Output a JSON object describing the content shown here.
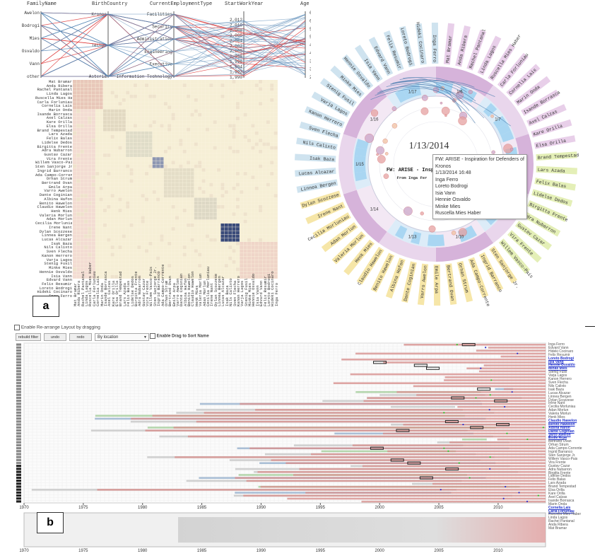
{
  "panel_labels": {
    "a": "a",
    "b": "b"
  },
  "parallel": {
    "headers": [
      "FamilyName",
      "BirthCountry",
      "CurrentEmploymentType",
      "StartWorkYear",
      "Age"
    ],
    "family_names": [
      "Awelon",
      "Bodrogi",
      "Mies",
      "Osvaldo",
      "Vann",
      "other"
    ],
    "countries": [
      "Kronos",
      "Tethys",
      "Asteria"
    ],
    "employment": [
      "Facilities",
      "Security",
      "Administration",
      "Engineering",
      "Executive",
      "Information Technology"
    ],
    "years": [
      "2,012",
      "2,010",
      "2,008",
      "2,006",
      "2,004",
      "2,002",
      "2,000",
      "1,998",
      "1,996",
      "1,994",
      "1,992",
      "1,990"
    ],
    "ages": [
      "65",
      "60",
      "55",
      "50",
      "45",
      "40",
      "35",
      "30",
      "25"
    ]
  },
  "matrix": {
    "names": [
      "Mat Bramar",
      "Anda Ribera",
      "Rachel Pantanal",
      "Linda Lagos",
      "Ruscella Mies Haber",
      "Carla Forluniau",
      "Cornelia Lais",
      "Marin Onda",
      "Isande Borrasca",
      "Axel Calzas",
      "Kare Orilla",
      "Elsa Orilla",
      "Brand Tempestad",
      "Lars Azada",
      "Felix Balas",
      "Lidelse Dedos",
      "Birgitta Frente",
      "Adra Nubarron",
      "Gustav Cazar",
      "Vira Frente",
      "Willem Vasco-Pais",
      "Sten Sanjorge Jr.",
      "Ingrid Barranco",
      "Ada Campo-Corrente",
      "Orhan Strum",
      "Bertrand Ovan",
      "Emile Arpa",
      "Varro Awelon",
      "Dante Coginian",
      "Albina Hafon",
      "Benito Hawelon",
      "Claudio Hawelon",
      "Henk Mies",
      "Valeria Morlun",
      "Adan Morlun",
      "Cecilia Morluniau",
      "Irene Nant",
      "Dylan Scozzese",
      "Linnea Bergen",
      "Lucas Alcazar",
      "Isak Baza",
      "Nils Calixto",
      "Sven Flecha",
      "Kanon Herrero",
      "Varja Lagos",
      "Stenig Fusil",
      "Minke Mies",
      "Hennie Osvaldo",
      "Isia Vann",
      "Edvard Vann",
      "Felix Resumir",
      "Loreto Bodrogi",
      "Hideki Cocinaro",
      "Inga Ferro"
    ]
  },
  "radial": {
    "date": "1/13/2014",
    "subject": "FW: ARISE - Inspirati",
    "from": "From Inga Fer",
    "month_labels": [
      "1/6",
      "1/7",
      "1/8",
      "1/9",
      "1/10",
      "1/13",
      "1/14",
      "1/15",
      "1/16",
      "1/17"
    ],
    "outer_names": [
      "Mat Bramar",
      "Anda Ribera",
      "Rachel Pantanal",
      "Linda Lagos",
      "Ruscella Mies Haber",
      "Carla Forluniau",
      "Cornelia Lais",
      "Marin Onda",
      "Isande Borrasca",
      "Axel Calzas",
      "Kare Orilla",
      "Elsa Orilla",
      "Brand Tempestad",
      "Lars Azada",
      "Felix Balas",
      "Lidelse Dedos",
      "Birgitta Frente",
      "Adra Nubarron",
      "Gustav Cazar",
      "Vira Frente",
      "Willem Vasco-Pais",
      "Sten Sanjorge Jr.",
      "Ingrid Barranco",
      "Ada Campo-Corrente",
      "Orhan Strum",
      "Bertrand Ovan",
      "Emile Arpa",
      "Varro Awelon",
      "Dante Coginian",
      "Albina Hafon",
      "Benito Hawelon",
      "Claudio Hawelon",
      "Henk Mies",
      "Valeria Morlun",
      "Adan Morlun",
      "Cecilia Morluniau",
      "Irene Nant",
      "Dylan Scozzese",
      "Linnea Bergen",
      "Lucas Alcazar",
      "Isak Baza",
      "Nils Calixto",
      "Sven Flecha",
      "Kanon Herrero",
      "Varja Lagos",
      "Stenig Fusil",
      "Minke Mies",
      "Hennie Osvaldo",
      "Isia Vann",
      "Edvard Vann",
      "Felix Resumir",
      "Loreto Bodrogi",
      "Hideki Cocinaro",
      "Inga Ferro"
    ]
  },
  "tooltip": {
    "lines": [
      "FW: ARISE - Inspiration for Defenders of Kronos",
      "1/13/2014 16:48",
      "Inga Ferro",
      "Loreto Bodrogi",
      "Isia Vann",
      "Hennie Osvaldo",
      "Minke Mies",
      "Ruscella Mies Haber"
    ]
  },
  "timeline": {
    "checkbox_label": "Enable Re-arrange Layout by dragging",
    "buttons": [
      "rebuild filter",
      "undo",
      "redo"
    ],
    "select_value": "By location",
    "drag_label": "Enable Drag to Sort Name",
    "axis_years": [
      "1970",
      "1975",
      "1980",
      "1985",
      "1990",
      "1995",
      "2000",
      "2005",
      "2010"
    ],
    "names": [
      "Inga Ferro",
      "Edvard Vann",
      "Hideki Cocinaro",
      "Felix Resumir",
      "Loreto Bodrogi",
      "Isia Vann",
      "Hennie Osvaldo",
      "Minke Mies",
      "Stenig Fusil",
      "Varja Lagos",
      "Kanon Herrero",
      "Sven Flecha",
      "Nils Calixto",
      "Isak Baza",
      "Lucas Alcazar",
      "Linnea Bergen",
      "Dylan Scozzese",
      "Irene Nant",
      "Cecilia Morluniau",
      "Adan Morlun",
      "Valeria Morlun",
      "Henk Mies",
      "Claudio Hawelon",
      "Benito Hawelon",
      "Albina Hafon",
      "Dante Coginian",
      "Varro Awelon",
      "Emile Arpa",
      "Bertrand Ovan",
      "Orhan Strum",
      "Ada Campo-Corrente",
      "Ingrid Barranco",
      "Sten Sanjorge Jr.",
      "Willem Vasco-Pais",
      "Vira Frente",
      "Gustav Cazar",
      "Adra Nubarron",
      "Birgitta Frente",
      "Lidelse Dedos",
      "Felix Balas",
      "Lars Azada",
      "Brand Tempestad",
      "Elsa Orilla",
      "Kare Orilla",
      "Axel Calzas",
      "Isande Borrasca",
      "Marin Onda",
      "Cornelia Lais",
      "Carla Forluniau",
      "Ruscella Mies Haber",
      "Linda Lagos",
      "Rachel Pantanal",
      "Anda Ribera",
      "Mat Bramar"
    ],
    "highlight_names": [
      "Dante Coginian",
      "Varro Awelon",
      "Emile Arpa",
      "Loreto Bodrogi",
      "Isia Vann",
      "Hennie Osvaldo",
      "Minke Mies",
      "Claudio Hawelon",
      "Benito Hawelon",
      "Albina Hafon",
      "Carla Forluniau",
      "Cornelia Lais"
    ]
  }
}
